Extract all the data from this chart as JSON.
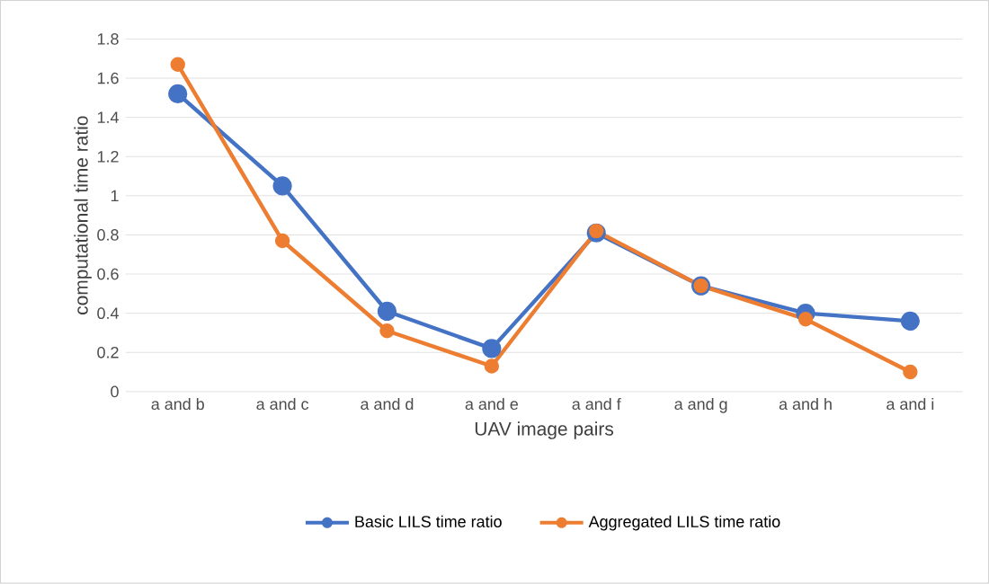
{
  "chart_data": {
    "type": "line",
    "xlabel": "UAV image pairs",
    "ylabel": "computational time ratio",
    "categories": [
      "a and b",
      "a and c",
      "a and d",
      "a and e",
      "a and f",
      "a and g",
      "a and h",
      "a and i"
    ],
    "series": [
      {
        "name": "Basic LILS time ratio",
        "color": "#4472c4",
        "values": [
          1.52,
          1.05,
          0.41,
          0.22,
          0.81,
          0.54,
          0.4,
          0.36
        ]
      },
      {
        "name": "Aggregated LILS time ratio",
        "color": "#ed7d31",
        "values": [
          1.67,
          0.77,
          0.31,
          0.13,
          0.82,
          0.54,
          0.37,
          0.1
        ]
      }
    ],
    "ylim": [
      0,
      1.8
    ],
    "yticks": [
      0,
      0.2,
      0.4,
      0.6,
      0.8,
      1,
      1.2,
      1.4,
      1.6,
      1.8
    ],
    "grid": "y",
    "legend": "bottom",
    "marker": "circle",
    "line_style": "solid"
  }
}
